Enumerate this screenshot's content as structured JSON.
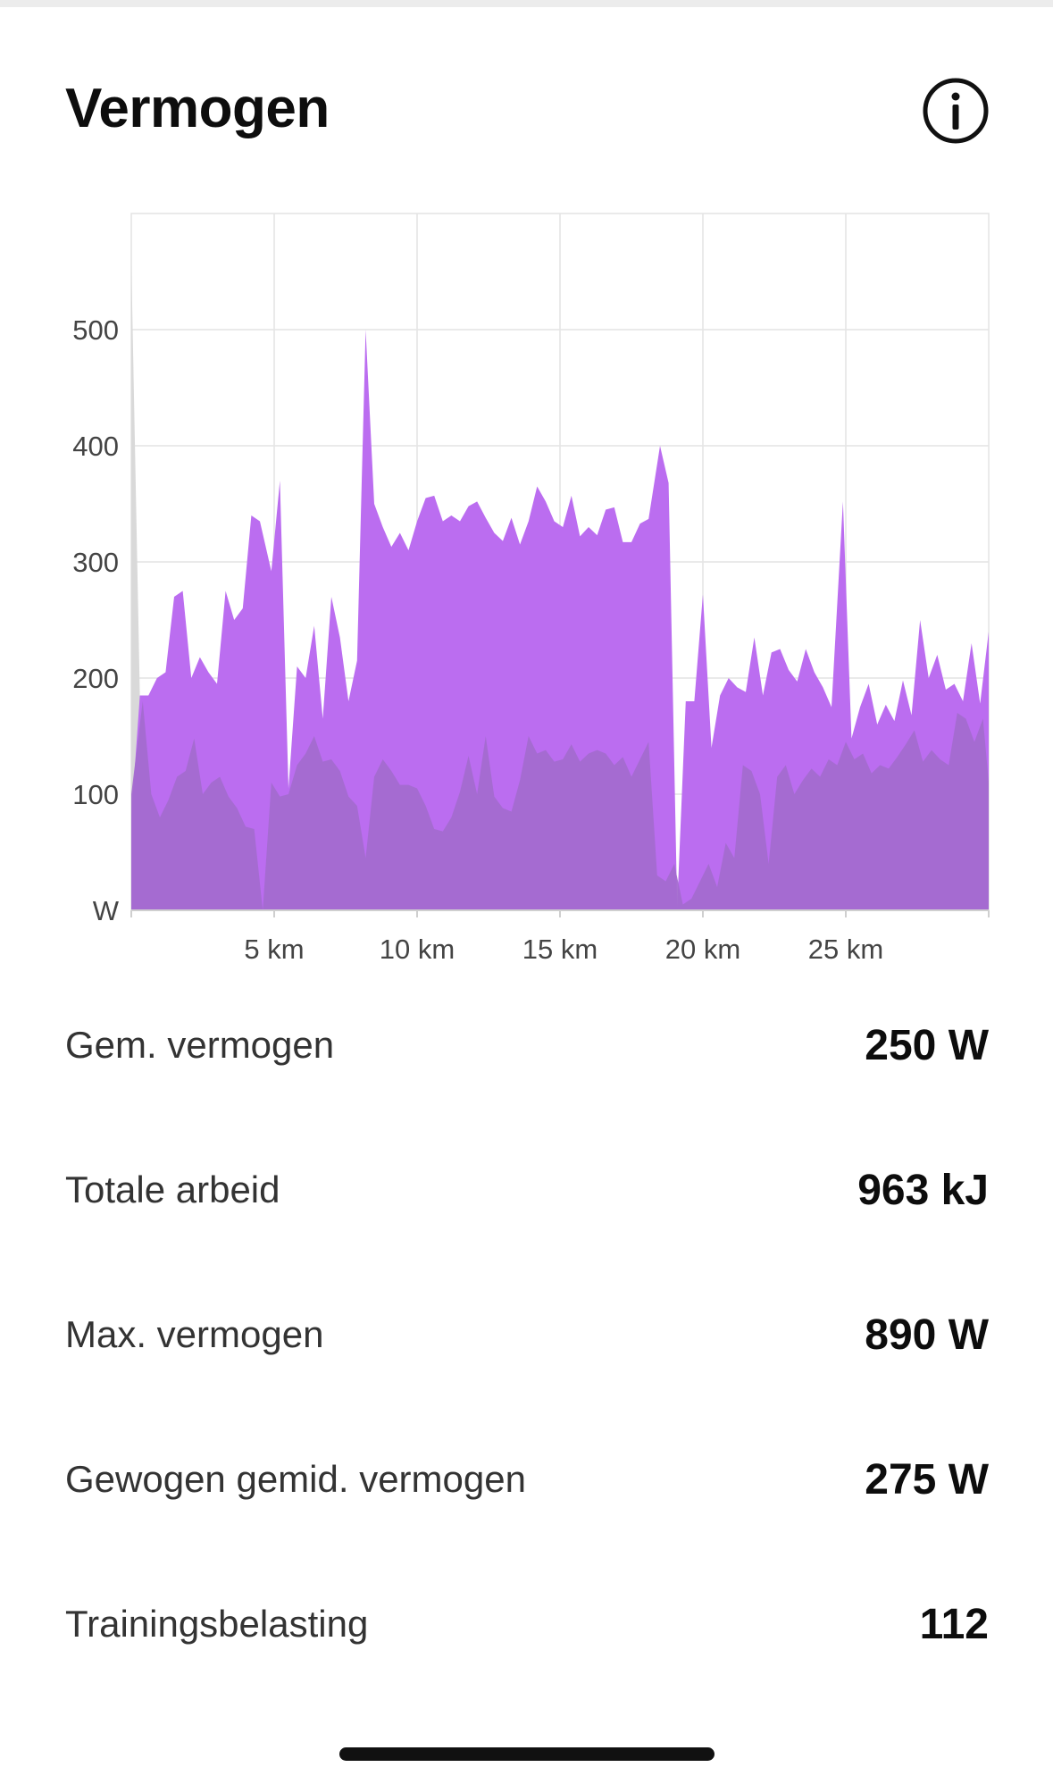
{
  "header": {
    "title": "Vermogen",
    "info_icon": "info-circle-icon"
  },
  "chart_data": {
    "type": "area",
    "xlabel": "",
    "ylabel": "W",
    "xlim": [
      0,
      30
    ],
    "ylim": [
      0,
      600
    ],
    "x_ticks": [
      {
        "value": 5,
        "label": "5 km"
      },
      {
        "value": 10,
        "label": "10 km"
      },
      {
        "value": 15,
        "label": "15 km"
      },
      {
        "value": 20,
        "label": "20 km"
      },
      {
        "value": 25,
        "label": "25 km"
      }
    ],
    "y_ticks": [
      {
        "value": 0,
        "label": "W"
      },
      {
        "value": 100,
        "label": "100"
      },
      {
        "value": 200,
        "label": "200"
      },
      {
        "value": 300,
        "label": "300"
      },
      {
        "value": 400,
        "label": "400"
      },
      {
        "value": 500,
        "label": "500"
      }
    ],
    "grid": true,
    "colors": {
      "main": "#bb6df0",
      "secondary": "#a36bcf",
      "start_spike": "#d9d9d9",
      "grid": "#e4e4e4",
      "axis_text": "#444444"
    },
    "series": [
      {
        "values": [
          [
            0,
            80
          ],
          [
            0.3,
            185
          ],
          [
            0.6,
            185
          ],
          [
            0.9,
            200
          ],
          [
            1.2,
            205
          ],
          [
            1.5,
            270
          ],
          [
            1.8,
            275
          ],
          [
            2.1,
            200
          ],
          [
            2.4,
            218
          ],
          [
            2.7,
            205
          ],
          [
            3.0,
            195
          ],
          [
            3.3,
            275
          ],
          [
            3.6,
            250
          ],
          [
            3.9,
            260
          ],
          [
            4.2,
            340
          ],
          [
            4.5,
            335
          ],
          [
            4.9,
            292
          ],
          [
            5.2,
            370
          ],
          [
            5.5,
            105
          ],
          [
            5.8,
            210
          ],
          [
            6.1,
            200
          ],
          [
            6.4,
            245
          ],
          [
            6.7,
            165
          ],
          [
            7.0,
            270
          ],
          [
            7.3,
            235
          ],
          [
            7.6,
            180
          ],
          [
            7.9,
            215
          ],
          [
            8.2,
            500
          ],
          [
            8.5,
            350
          ],
          [
            8.8,
            330
          ],
          [
            9.1,
            313
          ],
          [
            9.4,
            325
          ],
          [
            9.7,
            310
          ],
          [
            10.0,
            335
          ],
          [
            10.3,
            355
          ],
          [
            10.6,
            357
          ],
          [
            10.9,
            335
          ],
          [
            11.2,
            340
          ],
          [
            11.5,
            335
          ],
          [
            11.8,
            348
          ],
          [
            12.1,
            352
          ],
          [
            12.4,
            338
          ],
          [
            12.7,
            325
          ],
          [
            13.0,
            318
          ],
          [
            13.3,
            338
          ],
          [
            13.6,
            315
          ],
          [
            13.9,
            335
          ],
          [
            14.2,
            365
          ],
          [
            14.5,
            352
          ],
          [
            14.8,
            335
          ],
          [
            15.1,
            330
          ],
          [
            15.4,
            357
          ],
          [
            15.7,
            322
          ],
          [
            16.0,
            330
          ],
          [
            16.3,
            323
          ],
          [
            16.6,
            345
          ],
          [
            16.9,
            347
          ],
          [
            17.2,
            317
          ],
          [
            17.5,
            317
          ],
          [
            17.8,
            333
          ],
          [
            18.1,
            337
          ],
          [
            18.5,
            400
          ],
          [
            18.8,
            368
          ],
          [
            19.1,
            3
          ],
          [
            19.4,
            180
          ],
          [
            19.7,
            180
          ],
          [
            20.0,
            272
          ],
          [
            20.3,
            140
          ],
          [
            20.6,
            185
          ],
          [
            20.9,
            200
          ],
          [
            21.2,
            192
          ],
          [
            21.5,
            188
          ],
          [
            21.8,
            235
          ],
          [
            22.1,
            185
          ],
          [
            22.4,
            222
          ],
          [
            22.7,
            225
          ],
          [
            23.0,
            207
          ],
          [
            23.3,
            197
          ],
          [
            23.6,
            225
          ],
          [
            23.9,
            205
          ],
          [
            24.2,
            192
          ],
          [
            24.5,
            175
          ],
          [
            24.9,
            352
          ],
          [
            25.2,
            148
          ],
          [
            25.5,
            175
          ],
          [
            25.8,
            195
          ],
          [
            26.1,
            160
          ],
          [
            26.4,
            177
          ],
          [
            26.7,
            163
          ],
          [
            27.0,
            198
          ],
          [
            27.3,
            168
          ],
          [
            27.6,
            250
          ],
          [
            27.9,
            200
          ],
          [
            28.2,
            220
          ],
          [
            28.5,
            190
          ],
          [
            28.8,
            195
          ],
          [
            29.1,
            180
          ],
          [
            29.4,
            230
          ],
          [
            29.7,
            178
          ],
          [
            30.0,
            240
          ]
        ]
      },
      {
        "values": [
          [
            0,
            100
          ],
          [
            0.4,
            180
          ],
          [
            0.7,
            100
          ],
          [
            1.0,
            80
          ],
          [
            1.3,
            95
          ],
          [
            1.6,
            115
          ],
          [
            1.9,
            120
          ],
          [
            2.2,
            148
          ],
          [
            2.5,
            100
          ],
          [
            2.8,
            110
          ],
          [
            3.1,
            115
          ],
          [
            3.4,
            98
          ],
          [
            3.7,
            88
          ],
          [
            4.0,
            72
          ],
          [
            4.3,
            70
          ],
          [
            4.6,
            0
          ],
          [
            4.9,
            110
          ],
          [
            5.2,
            98
          ],
          [
            5.5,
            100
          ],
          [
            5.8,
            125
          ],
          [
            6.1,
            135
          ],
          [
            6.4,
            150
          ],
          [
            6.7,
            128
          ],
          [
            7.0,
            130
          ],
          [
            7.3,
            120
          ],
          [
            7.6,
            98
          ],
          [
            7.9,
            90
          ],
          [
            8.2,
            45
          ],
          [
            8.5,
            115
          ],
          [
            8.8,
            130
          ],
          [
            9.1,
            120
          ],
          [
            9.4,
            108
          ],
          [
            9.7,
            108
          ],
          [
            10.0,
            105
          ],
          [
            10.3,
            90
          ],
          [
            10.6,
            70
          ],
          [
            10.9,
            68
          ],
          [
            11.2,
            80
          ],
          [
            11.5,
            102
          ],
          [
            11.8,
            133
          ],
          [
            12.1,
            100
          ],
          [
            12.4,
            150
          ],
          [
            12.7,
            98
          ],
          [
            13.0,
            88
          ],
          [
            13.3,
            85
          ],
          [
            13.6,
            112
          ],
          [
            13.9,
            150
          ],
          [
            14.2,
            135
          ],
          [
            14.5,
            138
          ],
          [
            14.8,
            128
          ],
          [
            15.1,
            130
          ],
          [
            15.4,
            143
          ],
          [
            15.7,
            128
          ],
          [
            16.0,
            135
          ],
          [
            16.3,
            138
          ],
          [
            16.6,
            135
          ],
          [
            16.9,
            125
          ],
          [
            17.2,
            132
          ],
          [
            17.5,
            115
          ],
          [
            17.8,
            130
          ],
          [
            18.1,
            145
          ],
          [
            18.4,
            30
          ],
          [
            18.7,
            25
          ],
          [
            19.0,
            40
          ],
          [
            19.3,
            5
          ],
          [
            19.6,
            10
          ],
          [
            19.9,
            25
          ],
          [
            20.2,
            40
          ],
          [
            20.5,
            20
          ],
          [
            20.8,
            58
          ],
          [
            21.1,
            45
          ],
          [
            21.4,
            125
          ],
          [
            21.7,
            120
          ],
          [
            22.0,
            100
          ],
          [
            22.3,
            40
          ],
          [
            22.6,
            115
          ],
          [
            22.9,
            125
          ],
          [
            23.2,
            100
          ],
          [
            23.5,
            112
          ],
          [
            23.8,
            122
          ],
          [
            24.1,
            115
          ],
          [
            24.4,
            130
          ],
          [
            24.7,
            125
          ],
          [
            25.0,
            145
          ],
          [
            25.3,
            130
          ],
          [
            25.6,
            135
          ],
          [
            25.9,
            118
          ],
          [
            26.2,
            125
          ],
          [
            26.5,
            122
          ],
          [
            26.8,
            132
          ],
          [
            27.1,
            143
          ],
          [
            27.4,
            155
          ],
          [
            27.7,
            128
          ],
          [
            28.0,
            138
          ],
          [
            28.3,
            130
          ],
          [
            28.6,
            125
          ],
          [
            28.9,
            170
          ],
          [
            29.2,
            165
          ],
          [
            29.5,
            145
          ],
          [
            29.8,
            165
          ],
          [
            30.0,
            110
          ]
        ]
      }
    ]
  },
  "stats": [
    {
      "label": "Gem. vermogen",
      "value": "250 W"
    },
    {
      "label": "Totale arbeid",
      "value": "963 kJ"
    },
    {
      "label": "Max. vermogen",
      "value": "890 W"
    },
    {
      "label": "Gewogen gemid. vermogen",
      "value": "275 W"
    },
    {
      "label": "Trainingsbelasting",
      "value": "112"
    }
  ]
}
